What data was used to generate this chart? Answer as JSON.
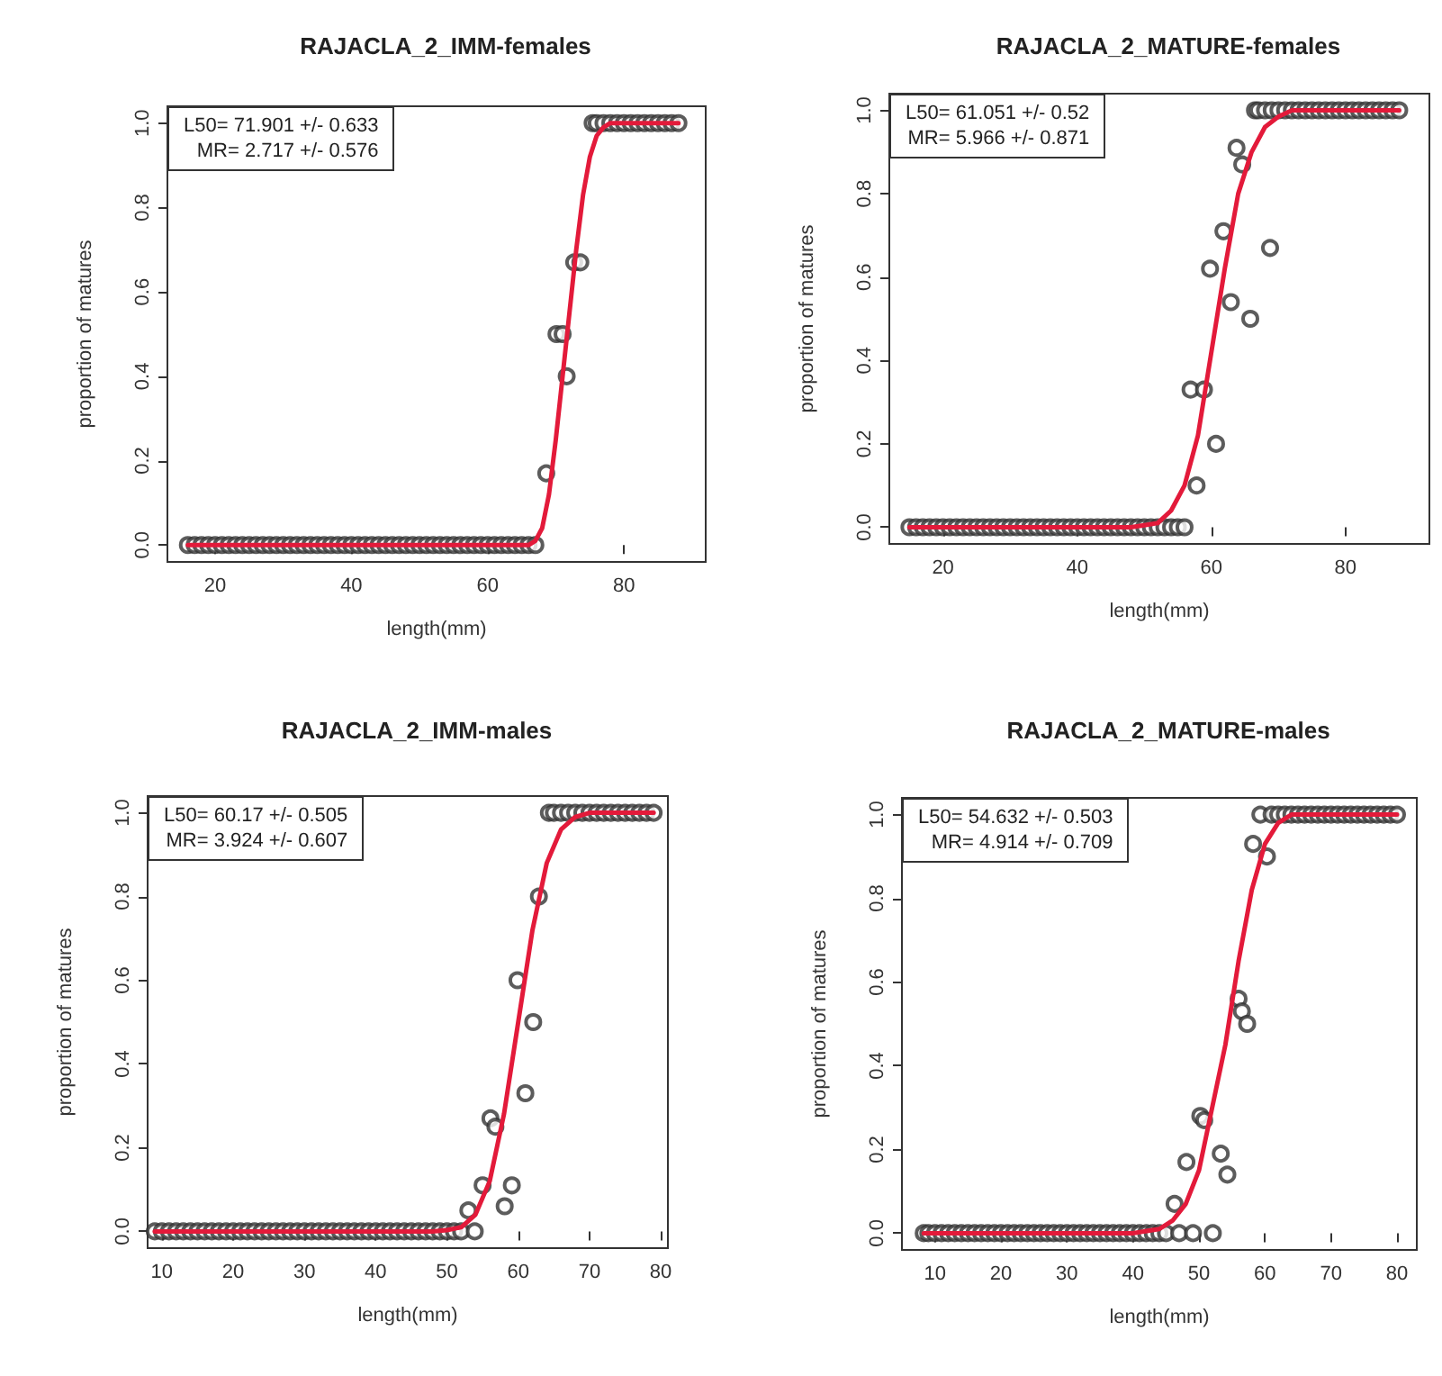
{
  "chart_data": [
    {
      "type": "scatter",
      "title": "RAJACLA_2_IMM-females",
      "xlabel": "length(mm)",
      "ylabel": "proportion of matures",
      "annotations": [
        "L50= 71.901 +/- 0.633",
        "MR= 2.717 +/- 0.576"
      ],
      "xlim": [
        13,
        92
      ],
      "xticks": [
        20,
        40,
        60,
        80
      ],
      "ylim": [
        -0.04,
        1.04
      ],
      "yticks": [
        {
          "value": 0,
          "label": "0.0"
        },
        {
          "value": 0.2,
          "label": "0.2"
        },
        {
          "value": 0.4,
          "label": "0.4"
        },
        {
          "value": 0.6,
          "label": "0.6"
        },
        {
          "value": 0.8,
          "label": "0.8"
        },
        {
          "value": 1,
          "label": "1.0"
        }
      ],
      "grid": false,
      "series": [
        {
          "marker": "circle",
          "color": "#333333",
          "x": [
            16,
            17,
            18,
            19,
            20,
            21,
            22,
            23,
            24,
            25,
            26,
            27,
            28,
            29,
            30,
            31,
            32,
            33,
            34,
            35,
            36,
            37,
            38,
            39,
            40,
            41,
            42,
            43,
            44,
            45,
            46,
            47,
            48,
            49,
            50,
            51,
            52,
            53,
            54,
            55,
            56,
            57,
            58,
            59,
            60,
            61,
            62,
            63,
            64,
            65,
            66,
            67,
            68.6,
            70.1,
            71.0,
            71.6,
            72.7,
            73.6,
            75.4,
            76,
            77,
            78,
            79,
            80,
            81,
            82,
            83,
            84,
            85,
            86,
            87,
            88
          ],
          "values": [
            0,
            0,
            0,
            0,
            0,
            0,
            0,
            0,
            0,
            0,
            0,
            0,
            0,
            0,
            0,
            0,
            0,
            0,
            0,
            0,
            0,
            0,
            0,
            0,
            0,
            0,
            0,
            0,
            0,
            0,
            0,
            0,
            0,
            0,
            0,
            0,
            0,
            0,
            0,
            0,
            0,
            0,
            0,
            0,
            0,
            0,
            0,
            0,
            0,
            0,
            0,
            0,
            0.17,
            0.5,
            0.5,
            0.4,
            0.67,
            0.67,
            1,
            1,
            1,
            1,
            1,
            1,
            1,
            1,
            1,
            1,
            1,
            1,
            1,
            1
          ]
        },
        {
          "type": "line",
          "marker": "none",
          "line_style": "solid",
          "color": "#e31a3a",
          "x": [
            16,
            66,
            67,
            68,
            69,
            70,
            71,
            72,
            73,
            74,
            75,
            76,
            77,
            78,
            88
          ],
          "values": [
            0,
            0,
            0.01,
            0.04,
            0.12,
            0.25,
            0.4,
            0.55,
            0.7,
            0.83,
            0.92,
            0.97,
            0.99,
            1,
            1
          ]
        }
      ]
    },
    {
      "type": "scatter",
      "title": "RAJACLA_2_MATURE-females",
      "xlabel": "length(mm)",
      "ylabel": "proportion of matures",
      "annotations": [
        "L50= 61.051 +/- 0.52",
        "MR= 5.966 +/- 0.871"
      ],
      "xlim": [
        12,
        92.5
      ],
      "xticks": [
        20,
        40,
        60,
        80
      ],
      "ylim": [
        -0.04,
        1.04
      ],
      "yticks": [
        {
          "value": 0,
          "label": "0.0"
        },
        {
          "value": 0.2,
          "label": "0.2"
        },
        {
          "value": 0.4,
          "label": "0.4"
        },
        {
          "value": 0.6,
          "label": "0.6"
        },
        {
          "value": 0.8,
          "label": "0.8"
        },
        {
          "value": 1,
          "label": "1.0"
        }
      ],
      "grid": false,
      "series": [
        {
          "marker": "circle",
          "color": "#333333",
          "x": [
            15,
            16,
            17,
            18,
            19,
            20,
            21,
            22,
            23,
            24,
            25,
            26,
            27,
            28,
            29,
            30,
            31,
            32,
            33,
            34,
            35,
            36,
            37,
            38,
            39,
            40,
            41,
            42,
            43,
            44,
            45,
            46,
            47,
            48,
            49,
            50,
            51,
            52,
            53,
            54,
            55,
            56,
            56.9,
            57.8,
            58.9,
            59.8,
            60.7,
            61.8,
            62.9,
            63.75,
            64.6,
            65.8,
            68.75,
            66.5,
            67,
            68,
            69,
            70,
            71,
            72,
            73,
            74,
            75,
            76,
            77,
            78,
            79,
            80,
            81,
            82,
            83,
            84,
            85,
            86,
            87,
            88
          ],
          "values": [
            0,
            0,
            0,
            0,
            0,
            0,
            0,
            0,
            0,
            0,
            0,
            0,
            0,
            0,
            0,
            0,
            0,
            0,
            0,
            0,
            0,
            0,
            0,
            0,
            0,
            0,
            0,
            0,
            0,
            0,
            0,
            0,
            0,
            0,
            0,
            0,
            0,
            0,
            0,
            0,
            0,
            0,
            0.33,
            0.1,
            0.33,
            0.62,
            0.2,
            0.71,
            0.54,
            0.91,
            0.87,
            0.5,
            0.67,
            1,
            1,
            1,
            1,
            1,
            1,
            1,
            1,
            1,
            1,
            1,
            1,
            1,
            1,
            1,
            1,
            1,
            1,
            1,
            1,
            1,
            1,
            1
          ]
        },
        {
          "type": "line",
          "marker": "none",
          "line_style": "solid",
          "color": "#e31a3a",
          "x": [
            15,
            48,
            50,
            52,
            54,
            56,
            58,
            60,
            62,
            64,
            66,
            68,
            70,
            72,
            88
          ],
          "values": [
            0,
            0,
            0.005,
            0.01,
            0.04,
            0.1,
            0.22,
            0.42,
            0.62,
            0.8,
            0.9,
            0.96,
            0.985,
            1,
            1
          ]
        }
      ]
    },
    {
      "type": "scatter",
      "title": "RAJACLA_2_IMM-males",
      "xlabel": "length(mm)",
      "ylabel": "proportion of matures",
      "annotations": [
        "L50= 60.17 +/- 0.505",
        "MR= 3.924 +/- 0.607"
      ],
      "xlim": [
        8,
        81
      ],
      "xticks": [
        10,
        20,
        30,
        40,
        50,
        60,
        70,
        80
      ],
      "ylim": [
        -0.04,
        1.04
      ],
      "yticks": [
        {
          "value": 0,
          "label": "0.0"
        },
        {
          "value": 0.2,
          "label": "0.2"
        },
        {
          "value": 0.4,
          "label": "0.4"
        },
        {
          "value": 0.6,
          "label": "0.6"
        },
        {
          "value": 0.8,
          "label": "0.8"
        },
        {
          "value": 1,
          "label": "1.0"
        }
      ],
      "grid": false,
      "series": [
        {
          "marker": "circle",
          "color": "#333333",
          "x": [
            9,
            10,
            11,
            12,
            13,
            14,
            15,
            16,
            17,
            18,
            19,
            20,
            21,
            22,
            23,
            24,
            25,
            26,
            27,
            28,
            29,
            30,
            31,
            32,
            33,
            34,
            35,
            36,
            37,
            38,
            39,
            40,
            41,
            42,
            43,
            44,
            45,
            46,
            47,
            48,
            49,
            50,
            51,
            52,
            53.0,
            53.9,
            55.0,
            56.1,
            56.8,
            58.1,
            59.1,
            59.9,
            61.0,
            62.1,
            62.9,
            64.3,
            65,
            66,
            67,
            68,
            69,
            70,
            71,
            72,
            73,
            74,
            75,
            76,
            77,
            78,
            79
          ],
          "values": [
            0,
            0,
            0,
            0,
            0,
            0,
            0,
            0,
            0,
            0,
            0,
            0,
            0,
            0,
            0,
            0,
            0,
            0,
            0,
            0,
            0,
            0,
            0,
            0,
            0,
            0,
            0,
            0,
            0,
            0,
            0,
            0,
            0,
            0,
            0,
            0,
            0,
            0,
            0,
            0,
            0,
            0,
            0,
            0,
            0.05,
            0,
            0.11,
            0.27,
            0.25,
            0.06,
            0.11,
            0.6,
            0.33,
            0.5,
            0.8,
            1,
            1,
            1,
            1,
            1,
            1,
            1,
            1,
            1,
            1,
            1,
            1,
            1,
            1,
            1,
            1
          ]
        },
        {
          "type": "line",
          "marker": "none",
          "line_style": "solid",
          "color": "#e31a3a",
          "x": [
            9,
            48,
            50,
            52,
            54,
            56,
            58,
            60,
            62,
            64,
            66,
            68,
            70,
            79
          ],
          "values": [
            0,
            0,
            0.003,
            0.01,
            0.04,
            0.12,
            0.28,
            0.5,
            0.72,
            0.88,
            0.96,
            0.99,
            1,
            1
          ]
        }
      ]
    },
    {
      "type": "scatter",
      "title": "RAJACLA_2_MATURE-males",
      "xlabel": "length(mm)",
      "ylabel": "proportion of matures",
      "annotations": [
        "L50= 54.632 +/- 0.503",
        "MR= 4.914 +/- 0.709"
      ],
      "xlim": [
        5,
        83
      ],
      "xticks": [
        10,
        20,
        30,
        40,
        50,
        60,
        70,
        80
      ],
      "ylim": [
        -0.04,
        1.04
      ],
      "yticks": [
        {
          "value": 0,
          "label": "0.0"
        },
        {
          "value": 0.2,
          "label": "0.2"
        },
        {
          "value": 0.4,
          "label": "0.4"
        },
        {
          "value": 0.6,
          "label": "0.6"
        },
        {
          "value": 0.8,
          "label": "0.8"
        },
        {
          "value": 1,
          "label": "1.0"
        }
      ],
      "grid": false,
      "series": [
        {
          "marker": "circle",
          "color": "#333333",
          "x": [
            8.3,
            9,
            10,
            11,
            12,
            13,
            14,
            15,
            16,
            17,
            18,
            19,
            20,
            21,
            22,
            23,
            24,
            25,
            26,
            27,
            28,
            29,
            30,
            31,
            32,
            33,
            34,
            35,
            36,
            37,
            38,
            39,
            40,
            41,
            42,
            43,
            44,
            45,
            46.3,
            47,
            48.1,
            49.1,
            50.2,
            50.8,
            52.1,
            53.3,
            54.3,
            56.0,
            56.5,
            57.3,
            58.2,
            59.3,
            60.3,
            61,
            62,
            63,
            64,
            65,
            66,
            67,
            68,
            69,
            70,
            71,
            72,
            73,
            74,
            75,
            76,
            77,
            78,
            79,
            80
          ],
          "values": [
            0,
            0,
            0,
            0,
            0,
            0,
            0,
            0,
            0,
            0,
            0,
            0,
            0,
            0,
            0,
            0,
            0,
            0,
            0,
            0,
            0,
            0,
            0,
            0,
            0,
            0,
            0,
            0,
            0,
            0,
            0,
            0,
            0,
            0,
            0,
            0,
            0,
            0,
            0.07,
            0,
            0.17,
            0,
            0.28,
            0.27,
            0,
            0.19,
            0.14,
            0.56,
            0.53,
            0.5,
            0.93,
            1,
            0.9,
            1,
            1,
            1,
            1,
            1,
            1,
            1,
            1,
            1,
            1,
            1,
            1,
            1,
            1,
            1,
            1,
            1,
            1,
            1,
            1
          ]
        },
        {
          "type": "line",
          "marker": "none",
          "line_style": "solid",
          "color": "#e31a3a",
          "x": [
            8.3,
            40,
            44,
            46,
            48,
            50,
            52,
            54,
            56,
            58,
            60,
            62,
            64,
            80
          ],
          "values": [
            0,
            0,
            0.01,
            0.03,
            0.07,
            0.15,
            0.3,
            0.45,
            0.65,
            0.82,
            0.93,
            0.98,
            1,
            1
          ]
        }
      ]
    }
  ]
}
